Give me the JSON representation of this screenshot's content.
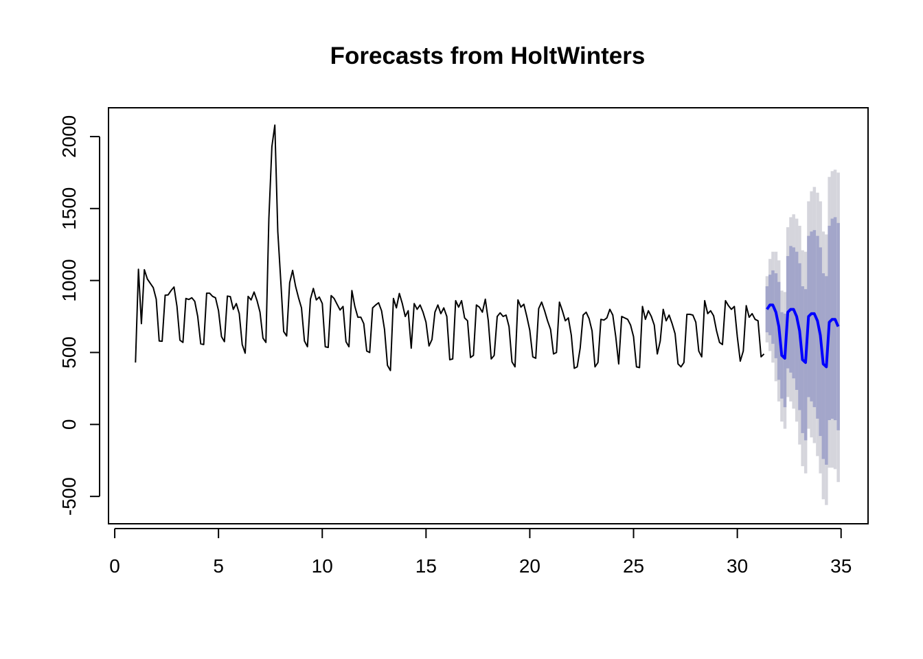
{
  "chart_data": {
    "type": "line",
    "title": "Forecasts from HoltWinters",
    "xlabel": "",
    "ylabel": "",
    "xlim": [
      -0.3,
      36.3
    ],
    "ylim": [
      -690,
      2200
    ],
    "x_ticks": [
      0,
      5,
      10,
      15,
      20,
      25,
      30,
      35
    ],
    "x_tick_labels": [
      "0",
      "5",
      "10",
      "15",
      "20",
      "25",
      "30",
      "35"
    ],
    "y_ticks": [
      -500,
      0,
      500,
      1000,
      1500,
      2000
    ],
    "y_tick_labels": [
      "-500",
      "0",
      "500",
      "1000",
      "1500",
      "2000"
    ],
    "grid": false,
    "legend": "none",
    "colors": {
      "observed": "#000000",
      "forecast": "#0000ff",
      "band_95": "#d5d5dc",
      "band_80": "#a3a6ca"
    },
    "observed": {
      "x_start": 1,
      "frequency": 7,
      "values": [
        430,
        1078,
        700,
        1075,
        1010,
        980,
        950,
        870,
        580,
        578,
        898,
        900,
        930,
        955,
        820,
        585,
        570,
        875,
        868,
        880,
        855,
        750,
        560,
        555,
        912,
        912,
        890,
        880,
        790,
        610,
        575,
        892,
        888,
        800,
        840,
        770,
        555,
        495,
        890,
        865,
        920,
        860,
        780,
        600,
        570,
        1430,
        1930,
        2080,
        1340,
        1000,
        645,
        615,
        985,
        1070,
        960,
        880,
        810,
        580,
        540,
        870,
        945,
        865,
        885,
        840,
        540,
        535,
        895,
        875,
        835,
        795,
        820,
        575,
        540,
        930,
        820,
        745,
        745,
        700,
        510,
        500,
        810,
        830,
        845,
        790,
        660,
        410,
        375,
        875,
        810,
        910,
        840,
        750,
        790,
        530,
        840,
        800,
        830,
        780,
        710,
        545,
        590,
        780,
        830,
        770,
        810,
        750,
        450,
        455,
        860,
        815,
        860,
        740,
        720,
        465,
        480,
        830,
        815,
        780,
        870,
        720,
        455,
        480,
        750,
        775,
        750,
        760,
        680,
        435,
        400,
        865,
        815,
        835,
        750,
        655,
        470,
        460,
        805,
        850,
        790,
        720,
        660,
        490,
        500,
        850,
        790,
        720,
        740,
        620,
        390,
        400,
        530,
        760,
        780,
        735,
        650,
        400,
        430,
        730,
        725,
        740,
        800,
        760,
        610,
        420,
        750,
        740,
        730,
        690,
        610,
        400,
        395,
        820,
        730,
        790,
        750,
        690,
        490,
        580,
        800,
        720,
        760,
        700,
        630,
        420,
        400,
        430,
        765,
        765,
        760,
        710,
        510,
        470,
        860,
        770,
        790,
        755,
        650,
        570,
        555,
        860,
        825,
        800,
        820,
        610,
        440,
        510,
        825,
        745,
        770,
        730,
        720,
        470,
        490
      ],
      "last_x": 31.43
    },
    "forecast": {
      "x": [
        31.43,
        31.57,
        31.71,
        31.86,
        32.0,
        32.14,
        32.29,
        32.43,
        32.57,
        32.71,
        32.86,
        33.0,
        33.14,
        33.29,
        33.43,
        33.57,
        33.71,
        33.86,
        34.0,
        34.14,
        34.29,
        34.43,
        34.57,
        34.71,
        34.86
      ],
      "mean": [
        800,
        830,
        830,
        780,
        680,
        480,
        460,
        780,
        800,
        800,
        750,
        650,
        450,
        430,
        750,
        770,
        770,
        720,
        620,
        420,
        400,
        710,
        730,
        730,
        680
      ],
      "lo80": [
        640,
        620,
        560,
        460,
        310,
        180,
        120,
        390,
        360,
        320,
        240,
        100,
        -60,
        -110,
        190,
        160,
        120,
        40,
        -80,
        -240,
        -280,
        30,
        40,
        30,
        -40
      ],
      "hi80": [
        960,
        1040,
        1070,
        1050,
        990,
        780,
        770,
        1170,
        1240,
        1230,
        1200,
        1120,
        960,
        940,
        1310,
        1340,
        1350,
        1310,
        1230,
        1050,
        1030,
        1380,
        1430,
        1440,
        1400
      ],
      "lo95": [
        570,
        510,
        430,
        300,
        160,
        20,
        -30,
        190,
        160,
        110,
        20,
        -140,
        -290,
        -340,
        -30,
        -90,
        -130,
        -220,
        -340,
        -520,
        -560,
        -300,
        -300,
        -310,
        -400
      ],
      "hi95": [
        1030,
        1150,
        1200,
        1200,
        1140,
        930,
        920,
        1370,
        1440,
        1460,
        1430,
        1380,
        1210,
        1200,
        1550,
        1620,
        1650,
        1610,
        1550,
        1340,
        1320,
        1720,
        1760,
        1770,
        1750
      ]
    }
  }
}
